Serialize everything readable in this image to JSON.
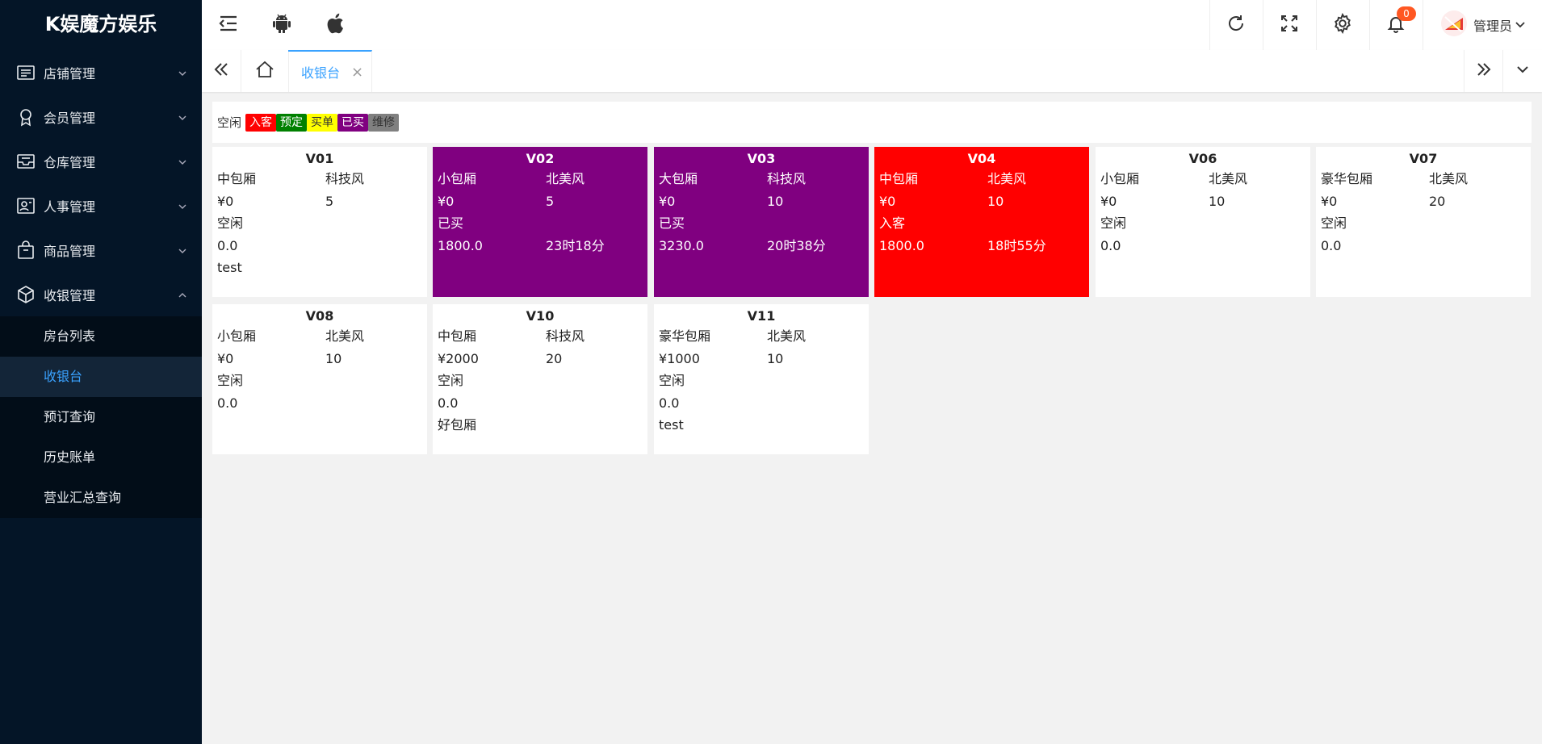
{
  "brand": "K娱魔方娱乐",
  "sidebar": {
    "menus": [
      {
        "label": "店铺管理",
        "icon": "list-icon"
      },
      {
        "label": "会员管理",
        "icon": "medal-icon"
      },
      {
        "label": "仓库管理",
        "icon": "inbox-icon"
      },
      {
        "label": "人事管理",
        "icon": "contact-card-icon"
      },
      {
        "label": "商品管理",
        "icon": "bag-icon"
      },
      {
        "label": "收银管理",
        "icon": "cube-icon"
      }
    ],
    "submenu": [
      "房台列表",
      "收银台",
      "预订查询",
      "历史账单",
      "营业汇总查询"
    ]
  },
  "header": {
    "notify_count": "0",
    "user_name": "管理员"
  },
  "tabs": {
    "active": "收银台",
    "close_glyph": "×"
  },
  "legend": {
    "label": "空闲",
    "chips": [
      {
        "text": "入客",
        "bg": "#ff0000",
        "fg": "#ffffff"
      },
      {
        "text": "预定",
        "bg": "#008000",
        "fg": "#ffffff"
      },
      {
        "text": "买单",
        "bg": "#ffff00",
        "fg": "#333333"
      },
      {
        "text": "已买",
        "bg": "#800080",
        "fg": "#ffffff"
      },
      {
        "text": "维修",
        "bg": "#808080",
        "fg": "#333333"
      }
    ]
  },
  "rooms": [
    {
      "name": "V01",
      "type": "中包厢",
      "style": "科技风",
      "price": "¥0",
      "capacity": "5",
      "status": "空闲",
      "amount": "0.0",
      "duration": "",
      "note": "test",
      "bg": "#ffffff",
      "fg": "#222222"
    },
    {
      "name": "V02",
      "type": "小包厢",
      "style": "北美风",
      "price": "¥0",
      "capacity": "5",
      "status": "已买",
      "amount": "1800.0",
      "duration": "23时18分",
      "note": "",
      "bg": "#800080",
      "fg": "#ffffff"
    },
    {
      "name": "V03",
      "type": "大包厢",
      "style": "科技风",
      "price": "¥0",
      "capacity": "10",
      "status": "已买",
      "amount": "3230.0",
      "duration": "20时38分",
      "note": "",
      "bg": "#800080",
      "fg": "#ffffff"
    },
    {
      "name": "V04",
      "type": "中包厢",
      "style": "北美风",
      "price": "¥0",
      "capacity": "10",
      "status": "入客",
      "amount": "1800.0",
      "duration": "18时55分",
      "note": "",
      "bg": "#ff0000",
      "fg": "#ffffff"
    },
    {
      "name": "V06",
      "type": "小包厢",
      "style": "北美风",
      "price": "¥0",
      "capacity": "10",
      "status": "空闲",
      "amount": "0.0",
      "duration": "",
      "note": "",
      "bg": "#ffffff",
      "fg": "#222222"
    },
    {
      "name": "V07",
      "type": "豪华包厢",
      "style": "北美风",
      "price": "¥0",
      "capacity": "20",
      "status": "空闲",
      "amount": "0.0",
      "duration": "",
      "note": "",
      "bg": "#ffffff",
      "fg": "#222222"
    },
    {
      "name": "V08",
      "type": "小包厢",
      "style": "北美风",
      "price": "¥0",
      "capacity": "10",
      "status": "空闲",
      "amount": "0.0",
      "duration": "",
      "note": "",
      "bg": "#ffffff",
      "fg": "#222222"
    },
    {
      "name": "V10",
      "type": "中包厢",
      "style": "科技风",
      "price": "¥2000",
      "capacity": "20",
      "status": "空闲",
      "amount": "0.0",
      "duration": "",
      "note": "好包厢",
      "bg": "#ffffff",
      "fg": "#222222"
    },
    {
      "name": "V11",
      "type": "豪华包厢",
      "style": "北美风",
      "price": "¥1000",
      "capacity": "10",
      "status": "空闲",
      "amount": "0.0",
      "duration": "",
      "note": "test",
      "bg": "#ffffff",
      "fg": "#222222"
    }
  ]
}
